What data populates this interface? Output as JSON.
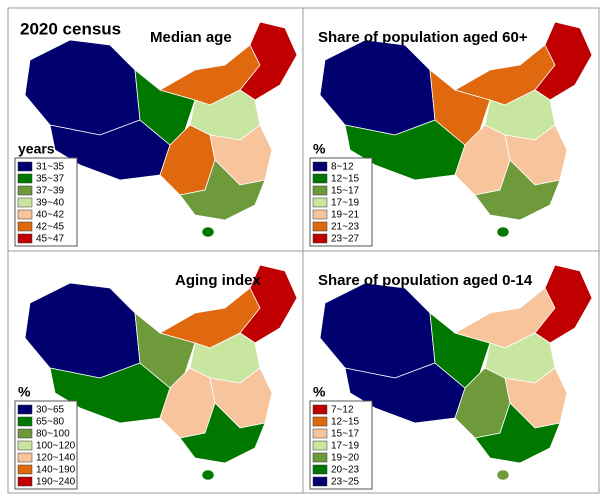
{
  "figure_title": "2020 census",
  "panels": [
    {
      "title": "Median age",
      "legend_title": "years",
      "legend": [
        {
          "label": "31~35",
          "color": "#00006e"
        },
        {
          "label": "35~37",
          "color": "#007800"
        },
        {
          "label": "37~39",
          "color": "#6e9a3c"
        },
        {
          "label": "39~40",
          "color": "#c8e6a0"
        },
        {
          "label": "40~42",
          "color": "#f8c49c"
        },
        {
          "label": "42~45",
          "color": "#e0680f"
        },
        {
          "label": "45~47",
          "color": "#c00000"
        }
      ]
    },
    {
      "title": "Share of population aged 60+",
      "legend_title": "%",
      "legend": [
        {
          "label": "8~12",
          "color": "#00006e"
        },
        {
          "label": "12~15",
          "color": "#007800"
        },
        {
          "label": "15~17",
          "color": "#6e9a3c"
        },
        {
          "label": "17~19",
          "color": "#c8e6a0"
        },
        {
          "label": "19~21",
          "color": "#f8c49c"
        },
        {
          "label": "21~23",
          "color": "#e0680f"
        },
        {
          "label": "23~27",
          "color": "#c00000"
        }
      ]
    },
    {
      "title": "Aging index",
      "legend_title": "%",
      "legend": [
        {
          "label": "30~65",
          "color": "#00006e"
        },
        {
          "label": "65~80",
          "color": "#007800"
        },
        {
          "label": "80~100",
          "color": "#6e9a3c"
        },
        {
          "label": "100~120",
          "color": "#c8e6a0"
        },
        {
          "label": "120~140",
          "color": "#f8c49c"
        },
        {
          "label": "140~190",
          "color": "#e0680f"
        },
        {
          "label": "190~240",
          "color": "#c00000"
        }
      ]
    },
    {
      "title": "Share of population aged 0-14",
      "legend_title": "%",
      "legend": [
        {
          "label": "7~12",
          "color": "#c00000"
        },
        {
          "label": "12~15",
          "color": "#e0680f"
        },
        {
          "label": "15~17",
          "color": "#f8c49c"
        },
        {
          "label": "17~19",
          "color": "#c8e6a0"
        },
        {
          "label": "19~20",
          "color": "#6e9a3c"
        },
        {
          "label": "20~23",
          "color": "#007800"
        },
        {
          "label": "23~25",
          "color": "#00006e"
        }
      ]
    }
  ]
}
